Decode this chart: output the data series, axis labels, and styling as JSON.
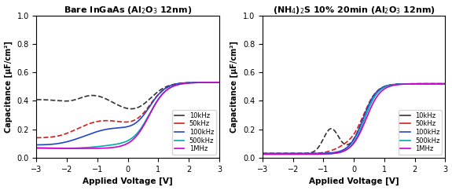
{
  "title1": "Bare InGaAs (Al$_2$O$_3$ 12nm)",
  "title2": "(NH$_4$)$_2$S 10% 20min (Al$_2$O$_3$ 12nm)",
  "xlabel": "Applied Voltage [V]",
  "ylabel": "Capacitance [μF/cm²]",
  "xlim": [
    -3,
    3
  ],
  "ylim": [
    0,
    1.0
  ],
  "yticks": [
    0.0,
    0.2,
    0.4,
    0.6,
    0.8,
    1.0
  ],
  "xticks": [
    -3,
    -2,
    -1,
    0,
    1,
    2,
    3
  ],
  "freq_labels": [
    "10kHz",
    "50kHz",
    "100kHz",
    "500kHz",
    "1MHz"
  ],
  "colors": [
    "#333333",
    "#cc2222",
    "#2244cc",
    "#00aaaa",
    "#cc00cc"
  ],
  "bg_color": "#ffffff"
}
